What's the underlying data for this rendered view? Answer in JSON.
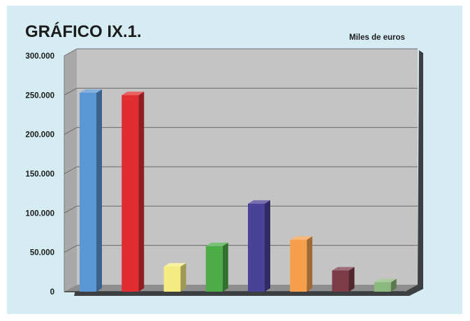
{
  "title": "GRÁFICO IX.1.",
  "units": "Miles de euros",
  "colors": {
    "background": "#d5ecf3",
    "wall": "#c4c4c4",
    "gridline": "#6a6a6a"
  },
  "chart_data": {
    "type": "bar",
    "title": "GRÁFICO IX.1.",
    "ylabel": "Miles de euros",
    "ylim": [
      0,
      300000
    ],
    "yticks": [
      0,
      50000,
      100000,
      150000,
      200000,
      250000,
      300000
    ],
    "ytick_labels": [
      "0",
      "50.000",
      "100.000",
      "150.000",
      "200.000",
      "250.000",
      "300.000"
    ],
    "grid": true,
    "legend": "none",
    "categories": [
      "",
      "",
      "",
      "",
      "",
      "",
      "",
      ""
    ],
    "values": [
      253000,
      250000,
      32000,
      58000,
      112000,
      66000,
      27000,
      12000
    ],
    "bar_colors": [
      "#5b97d4",
      "#e12c32",
      "#f4ec82",
      "#4cac48",
      "#4a4298",
      "#f6a04e",
      "#7b3c48",
      "#8cba7c"
    ]
  }
}
